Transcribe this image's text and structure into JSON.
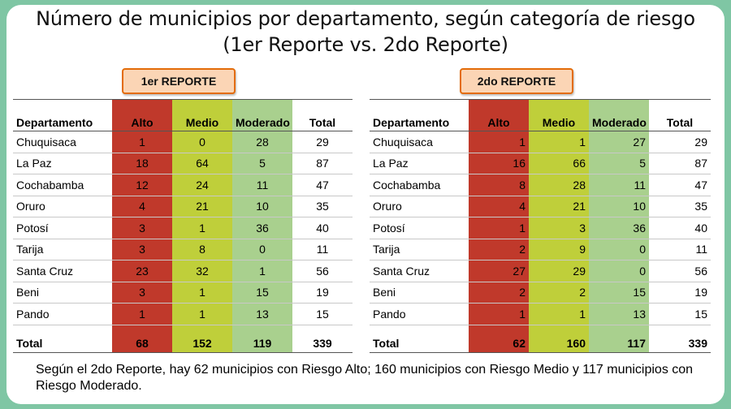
{
  "title_line1": "Número de municipios por departamento, según categoría de riesgo",
  "title_line2": "(1er Reporte vs. 2do Reporte)",
  "reports": [
    {
      "label": "1er REPORTE",
      "headers": [
        "Departamento",
        "Alto",
        "Medio",
        "Moderado",
        "Total"
      ],
      "rows": [
        [
          "Chuquisaca",
          "1",
          "0",
          "28",
          "29"
        ],
        [
          "La Paz",
          "18",
          "64",
          "5",
          "87"
        ],
        [
          "Cochabamba",
          "12",
          "24",
          "11",
          "47"
        ],
        [
          "Oruro",
          "4",
          "21",
          "10",
          "35"
        ],
        [
          "Potosí",
          "3",
          "1",
          "36",
          "40"
        ],
        [
          "Tarija",
          "3",
          "8",
          "0",
          "11"
        ],
        [
          "Santa Cruz",
          "23",
          "32",
          "1",
          "56"
        ],
        [
          "Beni",
          "3",
          "1",
          "15",
          "19"
        ],
        [
          "Pando",
          "1",
          "1",
          "13",
          "15"
        ]
      ],
      "total": [
        "Total",
        "68",
        "152",
        "119",
        "339"
      ]
    },
    {
      "label": "2do REPORTE",
      "headers": [
        "Departamento",
        "Alto",
        "Medio",
        "Moderado",
        "Total"
      ],
      "rows": [
        [
          "Chuquisaca",
          "1",
          "1",
          "27",
          "29"
        ],
        [
          "La Paz",
          "16",
          "66",
          "5",
          "87"
        ],
        [
          "Cochabamba",
          "8",
          "28",
          "11",
          "47"
        ],
        [
          "Oruro",
          "4",
          "21",
          "10",
          "35"
        ],
        [
          "Potosí",
          "1",
          "3",
          "36",
          "40"
        ],
        [
          "Tarija",
          "2",
          "9",
          "0",
          "11"
        ],
        [
          "Santa Cruz",
          "27",
          "29",
          "0",
          "56"
        ],
        [
          "Beni",
          "2",
          "2",
          "15",
          "19"
        ],
        [
          "Pando",
          "1",
          "1",
          "13",
          "15"
        ]
      ],
      "total": [
        "Total",
        "62",
        "160",
        "117",
        "339"
      ]
    }
  ],
  "colors": {
    "alto": "#c0392b",
    "medio": "#bfcf3a",
    "moderado": "#a9d08e",
    "frame": "#7fc6a4",
    "label_fill": "#fbd5b5",
    "label_border": "#e36c09"
  },
  "footer_text": "Según el 2do Reporte, hay 62 municipios con Riesgo Alto; 160 municipios con Riesgo Medio y 117 municipios con Riesgo Moderado."
}
